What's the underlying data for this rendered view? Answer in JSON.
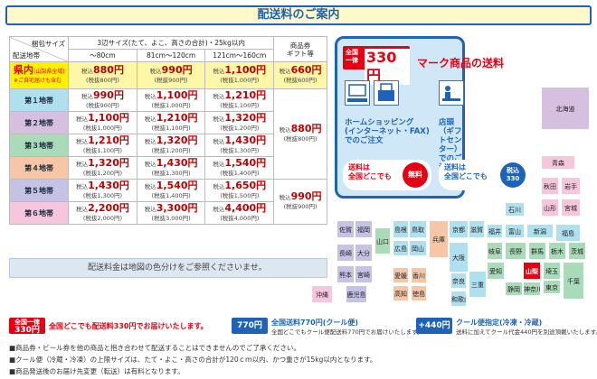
{
  "title": "配送料のご案内",
  "table": {
    "header_top_left": "梱包サイズ",
    "header_bottom_left": "配送地帯",
    "size_group": "3辺サイズ(たて、よこ、高さの合計)・25kg以内",
    "sizes": [
      "〜80cm",
      "81cm〜120cm",
      "121cm〜160cm"
    ],
    "gift_header": "商品券\nギフト等",
    "in_pref": {
      "label": "県内",
      "label_note": "(山梨県全域)",
      "note": "※ご自宅届けも含む",
      "prices": [
        "880円",
        "990円",
        "1,100円"
      ],
      "subs": [
        "(税抜800円)",
        "(税抜900円)",
        "(税抜1,000円)"
      ],
      "gift": "660円",
      "gift_sub": "(税抜600円)"
    },
    "tax_in": "税込",
    "zones": [
      {
        "label": "第１地帯",
        "prices": [
          "990円",
          "1,100円",
          "1,210円"
        ],
        "subs": [
          "(税抜900円)",
          "(税抜1,000円)",
          "(税抜1,100円)"
        ]
      },
      {
        "label": "第２地帯",
        "prices": [
          "1,100円",
          "1,210円",
          "1,320円"
        ],
        "subs": [
          "(税抜1,000円)",
          "(税抜1,100円)",
          "(税抜1,200円)"
        ]
      },
      {
        "label": "第３地帯",
        "prices": [
          "1,210円",
          "1,320円",
          "1,430円"
        ],
        "subs": [
          "(税抜1,100円)",
          "(税抜1,200円)",
          "(税抜1,300円)"
        ]
      },
      {
        "label": "第４地帯",
        "prices": [
          "1,320円",
          "1,430円",
          "1,540円"
        ],
        "subs": [
          "(税抜1,200円)",
          "(税抜1,300円)",
          "(税抜1,400円)"
        ]
      },
      {
        "label": "第５地帯",
        "prices": [
          "1,430円",
          "1,540円",
          "1,650円"
        ],
        "subs": [
          "(税抜1,300円)",
          "(税抜1,400円)",
          "(税抜1,500円)"
        ]
      },
      {
        "label": "第６地帯",
        "prices": [
          "2,200円",
          "3,300円",
          "4,400円"
        ],
        "subs": [
          "(税抜2,000円)",
          "(税抜3,000円)",
          "(税抜4,000円)"
        ]
      }
    ],
    "gift_mid": "880円",
    "gift_mid_sub": "(税抜800円)",
    "gift_low": "990円",
    "gift_low_sub": "(税抜900円)",
    "zone_colors": [
      "#aee0ef",
      "#d6c0e0",
      "#a9dbb8",
      "#f6c6a6",
      "#c6c2e6",
      "#f6c6dd"
    ]
  },
  "map_note": "配送料金は地図の色分けをご参照くださいませ。",
  "mark_panel": {
    "badge_top": "全国",
    "badge_mid": "一律",
    "badge_price": "330円",
    "title": "マーク商品の送料",
    "home_shopping": "ホームショッピング\n(インターネット・FAX)\nでのご注文",
    "store": "店頭（ギフトセンター）\nでのご注文",
    "bubble_left": "送料は\n全国どこでも",
    "circle_left": "無料",
    "bubble_right": "送料は\n全国どこでも",
    "circle_right": "税込\n330"
  },
  "prefectures": {
    "hokkaido": "北海道",
    "aomori": "青森",
    "akita": "秋田",
    "iwate": "岩手",
    "yamagata": "山形",
    "miyagi": "宮城",
    "ishikawa": "石川",
    "fukushima": "福島",
    "toyama": "富山",
    "niigata": "新潟",
    "fukui": "福井",
    "gifu": "岐阜",
    "nagano": "長野",
    "gunma": "群馬",
    "tochigi": "栃木",
    "ibaraki": "茨城",
    "kyoto": "京都",
    "shiga": "滋賀",
    "hyogo": "兵庫",
    "osaka": "大阪",
    "aichi": "愛知",
    "yamanashi": "山梨",
    "saitama": "埼玉",
    "tokyo": "東京",
    "chiba": "千葉",
    "kanagawa": "神奈川",
    "shizuoka": "静岡",
    "mie": "三重",
    "nara": "奈良",
    "wakayama": "和歌山",
    "tottori": "鳥取",
    "shimane": "島根",
    "okayama": "岡山",
    "hiroshima": "広島",
    "yamaguchi": "山口",
    "kagawa": "香川",
    "ehime": "愛媛",
    "tokushima": "徳島",
    "kochi": "高知",
    "saga": "佐賀",
    "fukuoka": "福岡",
    "nagasaki": "長崎",
    "oita": "大分",
    "kumamoto": "熊本",
    "miyazaki": "宮崎",
    "kagoshima": "鹿児島",
    "okinawa": "沖縄"
  },
  "footer": {
    "badge1_top": "全国一律",
    "badge1_price": "330円",
    "text1": "全国どこでも配送料330円でお届けいたします。",
    "badge2_price": "770円",
    "text2_title": "全国送料770円(クール便)",
    "text2_sub": "全国どこでもクール便配送料770円でお届けいたします。",
    "badge3": "+440円",
    "text3_title": "クール便指定(冷凍・冷蔵)",
    "text3_sub": "送料に加えてクール代金440円を別途頂戴いたします。",
    "notes": [
      "■商品券・ビール券を他の商品と抱き合わせて配送することはできませんのでご了承ください。",
      "■クール便（冷蔵・冷凍）の上限サイズは、たて・よこ・高さの合計が120ｃｍ以内、かつ重さが15kg以内となります。",
      "■商品発送後のお届け先変更（転送）は有料となります。"
    ]
  }
}
